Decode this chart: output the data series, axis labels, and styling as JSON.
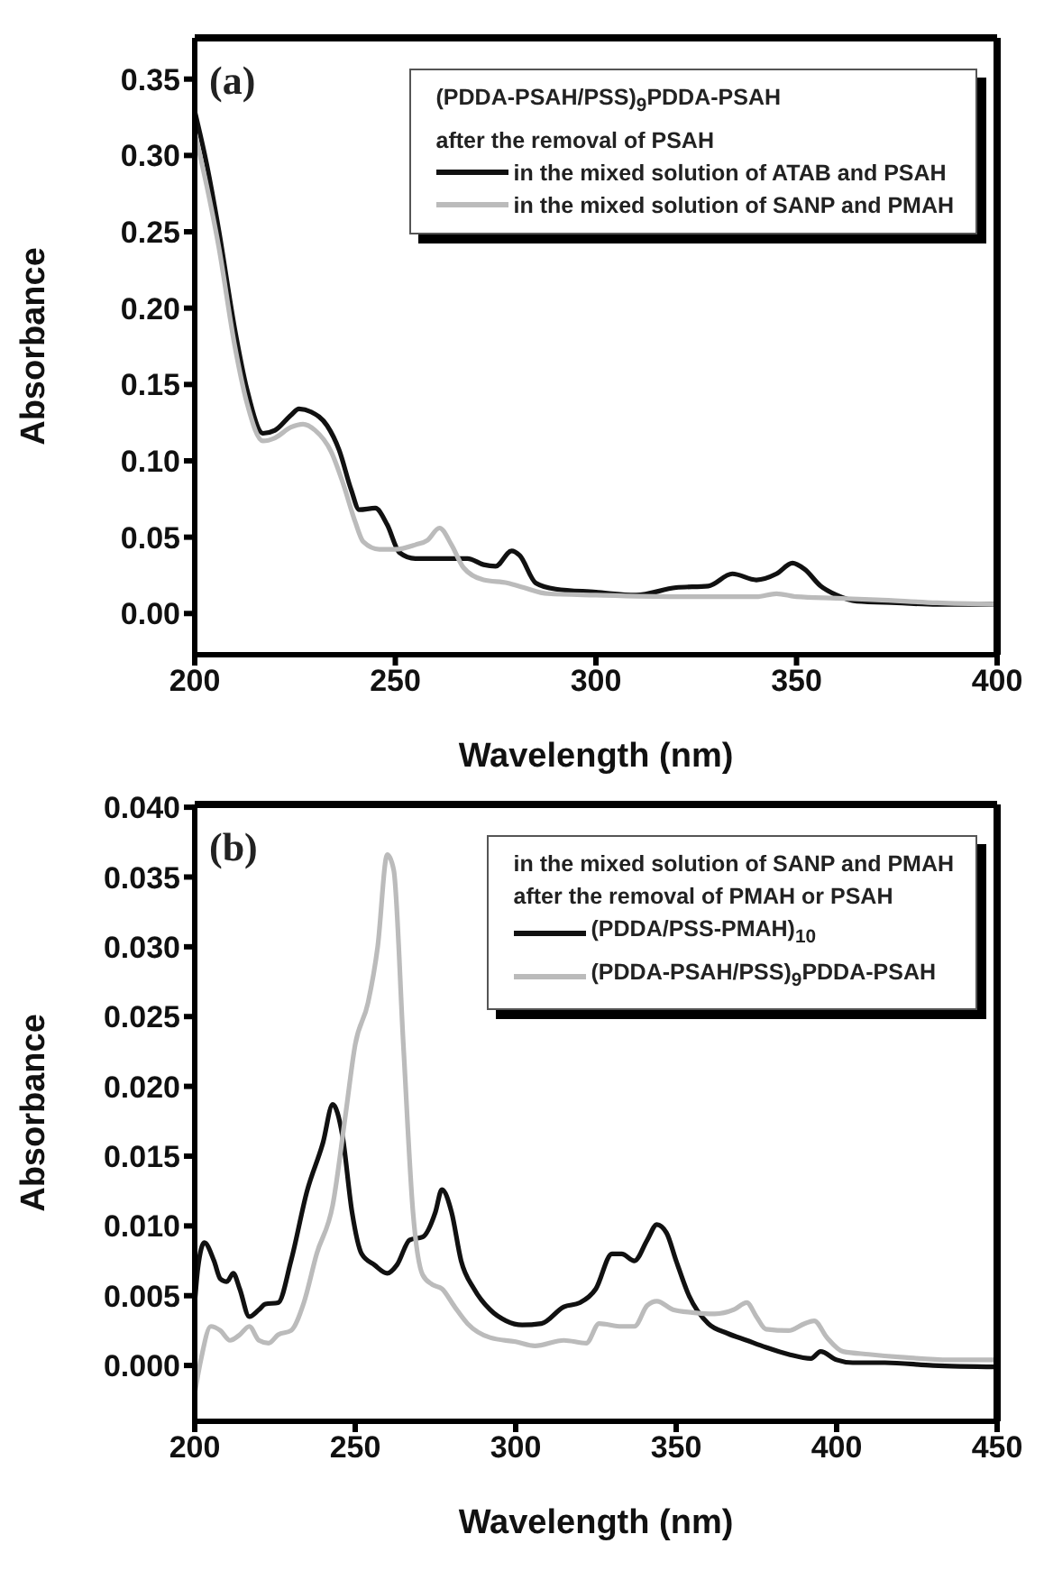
{
  "chart_data": [
    {
      "type": "line",
      "xlabel": "Wavelength (nm)",
      "ylabel": "Absorbance",
      "legend_title": "(PDDA-PSAH/PSS)$_{9}$PDDA-PSAH\nafter the removal of PSAH",
      "annotations": [
        "(a)"
      ],
      "legend": "top right",
      "marker": "none",
      "line_style": "solid",
      "xlim": [
        200,
        400
      ],
      "xticks": [
        200,
        250,
        300,
        350,
        400
      ],
      "ylim": [
        -0.027,
        0.377
      ],
      "yticks": [
        {
          "value": 0,
          "label": "0.00"
        },
        {
          "value": 0.05,
          "label": "0.05"
        },
        {
          "value": 0.1,
          "label": "0.10"
        },
        {
          "value": 0.15,
          "label": "0.15"
        },
        {
          "value": 0.2,
          "label": "0.20"
        },
        {
          "value": 0.25,
          "label": "0.25"
        },
        {
          "value": 0.3,
          "label": "0.30"
        },
        {
          "value": 0.35,
          "label": "0.35"
        }
      ],
      "series": [
        {
          "name": "in the mixed solution of ATAB and PSAH",
          "color": "#111111",
          "x": [
            200,
            203,
            206,
            210,
            213,
            217,
            220,
            224,
            226,
            229,
            233,
            236,
            239,
            241,
            245,
            248,
            251,
            255,
            262,
            268,
            272,
            275,
            279,
            281,
            285,
            290,
            300,
            310,
            320,
            328,
            334,
            340,
            345,
            349,
            352,
            356,
            360,
            365,
            375,
            385,
            400
          ],
          "values": [
            0.329,
            0.294,
            0.251,
            0.186,
            0.147,
            0.118,
            0.12,
            0.13,
            0.134,
            0.132,
            0.123,
            0.107,
            0.081,
            0.068,
            0.069,
            0.058,
            0.04,
            0.036,
            0.036,
            0.036,
            0.032,
            0.031,
            0.041,
            0.038,
            0.02,
            0.016,
            0.014,
            0.012,
            0.017,
            0.018,
            0.026,
            0.022,
            0.026,
            0.033,
            0.029,
            0.018,
            0.012,
            0.008,
            0.007,
            0.006,
            0.006
          ]
        },
        {
          "name": "in the mixed solution of SANP and PMAH",
          "color": "#bbbbbb",
          "x": [
            200,
            203,
            206,
            210,
            213,
            217,
            220,
            224,
            227,
            230,
            234,
            237,
            240,
            242,
            246,
            250,
            255,
            258,
            261,
            264,
            267,
            272,
            278,
            282,
            288,
            300,
            320,
            340,
            345,
            350,
            360,
            370,
            385,
            400
          ],
          "values": [
            0.315,
            0.28,
            0.24,
            0.175,
            0.138,
            0.113,
            0.115,
            0.122,
            0.124,
            0.12,
            0.106,
            0.085,
            0.06,
            0.047,
            0.042,
            0.042,
            0.045,
            0.048,
            0.056,
            0.045,
            0.03,
            0.022,
            0.02,
            0.017,
            0.013,
            0.012,
            0.011,
            0.011,
            0.013,
            0.011,
            0.01,
            0.009,
            0.007,
            0.006
          ]
        }
      ]
    },
    {
      "type": "line",
      "xlabel": "Wavelength (nm)",
      "ylabel": "Absorbance",
      "legend_title": "in the mixed solution of SANP and PMAH\nafter the removal of PMAH or PSAH",
      "annotations": [
        "(b)"
      ],
      "legend": "top right",
      "marker": "none",
      "line_style": "solid",
      "xlim": [
        200,
        450
      ],
      "xticks": [
        200,
        250,
        300,
        350,
        400,
        450
      ],
      "ylim": [
        -0.004,
        0.0402
      ],
      "yticks": [
        {
          "value": 0,
          "label": "0.000"
        },
        {
          "value": 0.005,
          "label": "0.005"
        },
        {
          "value": 0.01,
          "label": "0.010"
        },
        {
          "value": 0.015,
          "label": "0.015"
        },
        {
          "value": 0.02,
          "label": "0.020"
        },
        {
          "value": 0.025,
          "label": "0.025"
        },
        {
          "value": 0.03,
          "label": "0.030"
        },
        {
          "value": 0.035,
          "label": "0.035"
        },
        {
          "value": 0.04,
          "label": "0.040"
        }
      ],
      "series": [
        {
          "name": "(PDDA/PSS-PMAH)$_{10}$",
          "color": "#111111",
          "x": [
            200,
            201,
            203,
            206,
            208,
            210,
            212,
            214,
            217,
            220,
            222,
            226,
            230,
            235,
            240,
            243,
            246,
            249,
            252,
            256,
            260,
            263,
            267,
            271,
            275,
            277,
            280,
            283,
            287,
            292,
            297,
            302,
            308,
            315,
            320,
            325,
            330,
            333,
            337,
            341,
            344,
            347,
            350,
            354,
            360,
            366,
            372,
            378,
            385,
            392,
            395,
            400,
            405,
            415,
            430,
            450
          ],
          "values": [
            0.0045,
            0.007,
            0.0088,
            0.0075,
            0.0062,
            0.006,
            0.0066,
            0.0055,
            0.0035,
            0.004,
            0.0044,
            0.0045,
            0.0075,
            0.0125,
            0.016,
            0.0187,
            0.0165,
            0.011,
            0.008,
            0.0072,
            0.0066,
            0.0072,
            0.009,
            0.0092,
            0.011,
            0.0126,
            0.011,
            0.0075,
            0.0055,
            0.004,
            0.0032,
            0.0029,
            0.003,
            0.0042,
            0.0045,
            0.0055,
            0.008,
            0.008,
            0.0075,
            0.009,
            0.0101,
            0.0095,
            0.0075,
            0.005,
            0.003,
            0.0023,
            0.0018,
            0.0013,
            0.0008,
            0.0005,
            0.001,
            0.0004,
            0.0002,
            0.0002,
            0,
            -0.0001
          ]
        },
        {
          "name": "(PDDA-PSAH/PSS)$_{9}$PDDA-PSAH",
          "color": "#bbbbbb",
          "x": [
            200,
            202,
            205,
            208,
            211,
            214,
            217,
            220,
            223,
            226,
            230,
            234,
            238,
            243,
            247,
            250,
            254,
            257,
            260,
            262,
            265,
            268,
            271,
            274,
            277,
            281,
            285,
            292,
            300,
            306,
            315,
            322,
            326,
            333,
            337,
            341,
            344,
            349,
            355,
            362,
            368,
            372,
            375,
            378,
            385,
            390,
            393,
            397,
            402,
            410,
            420,
            435,
            450
          ],
          "values": [
            -0.002,
            0.0005,
            0.0028,
            0.0025,
            0.0018,
            0.0022,
            0.0028,
            0.0018,
            0.0016,
            0.0022,
            0.0025,
            0.0045,
            0.008,
            0.0115,
            0.018,
            0.023,
            0.026,
            0.03,
            0.0366,
            0.0355,
            0.023,
            0.011,
            0.0065,
            0.0058,
            0.0055,
            0.0042,
            0.003,
            0.002,
            0.0017,
            0.0014,
            0.0018,
            0.0016,
            0.003,
            0.0028,
            0.0028,
            0.0043,
            0.0046,
            0.004,
            0.0038,
            0.0037,
            0.004,
            0.0045,
            0.0035,
            0.0026,
            0.0025,
            0.003,
            0.0032,
            0.002,
            0.001,
            0.0008,
            0.0006,
            0.0004,
            0.0004
          ]
        }
      ]
    }
  ]
}
